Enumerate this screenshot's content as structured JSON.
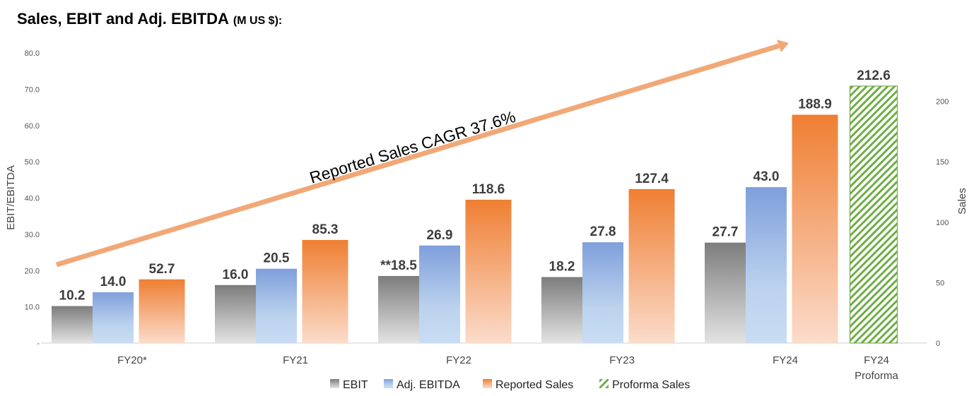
{
  "chart_data": {
    "type": "bar",
    "title": "Sales, EBIT and Adj. EBITDA",
    "title_unit": "(M US $):",
    "categories": [
      "FY20*",
      "FY21",
      "FY22",
      "FY23",
      "FY24",
      "FY24\nProforma"
    ],
    "series": [
      {
        "name": "EBIT",
        "axis": "left",
        "values": [
          10.2,
          16.0,
          18.5,
          18.2,
          27.7,
          null
        ],
        "labels": [
          "10.2",
          "16.0",
          "**18.5",
          "18.2",
          "27.7",
          ""
        ]
      },
      {
        "name": "Adj. EBITDA",
        "axis": "left",
        "values": [
          14.0,
          20.5,
          26.9,
          27.8,
          43.0,
          null
        ],
        "labels": [
          "14.0",
          "20.5",
          "26.9",
          "27.8",
          "43.0",
          ""
        ]
      },
      {
        "name": "Reported Sales",
        "axis": "right",
        "values": [
          52.7,
          85.3,
          118.6,
          127.4,
          188.9,
          null
        ],
        "labels": [
          "52.7",
          "85.3",
          "118.6",
          "127.4",
          "188.9",
          ""
        ]
      },
      {
        "name": "Proforma Sales",
        "axis": "right",
        "values": [
          null,
          null,
          null,
          null,
          null,
          212.6
        ],
        "labels": [
          "",
          "",
          "",
          "",
          "",
          "212.6"
        ]
      }
    ],
    "ylabel": "EBIT/EBITDA",
    "ylim": [
      0,
      80
    ],
    "yticks": [
      "-",
      "10.0",
      "20.0",
      "30.0",
      "40.0",
      "50.0",
      "60.0",
      "70.0",
      "80.0"
    ],
    "y2label": "Sales",
    "y2lim": [
      0,
      240
    ],
    "y2ticks": [
      "0",
      "50",
      "100",
      "150",
      "200"
    ],
    "annotation": "Reported Sales CAGR 37.6%",
    "legend_position": "bottom",
    "colors": {
      "EBIT": "#8c8c8c",
      "Adj. EBITDA": "#7f9fdc",
      "Reported Sales": "#ef8137",
      "Proforma Sales": "#70ad47",
      "arrow": "#f1a877"
    }
  }
}
